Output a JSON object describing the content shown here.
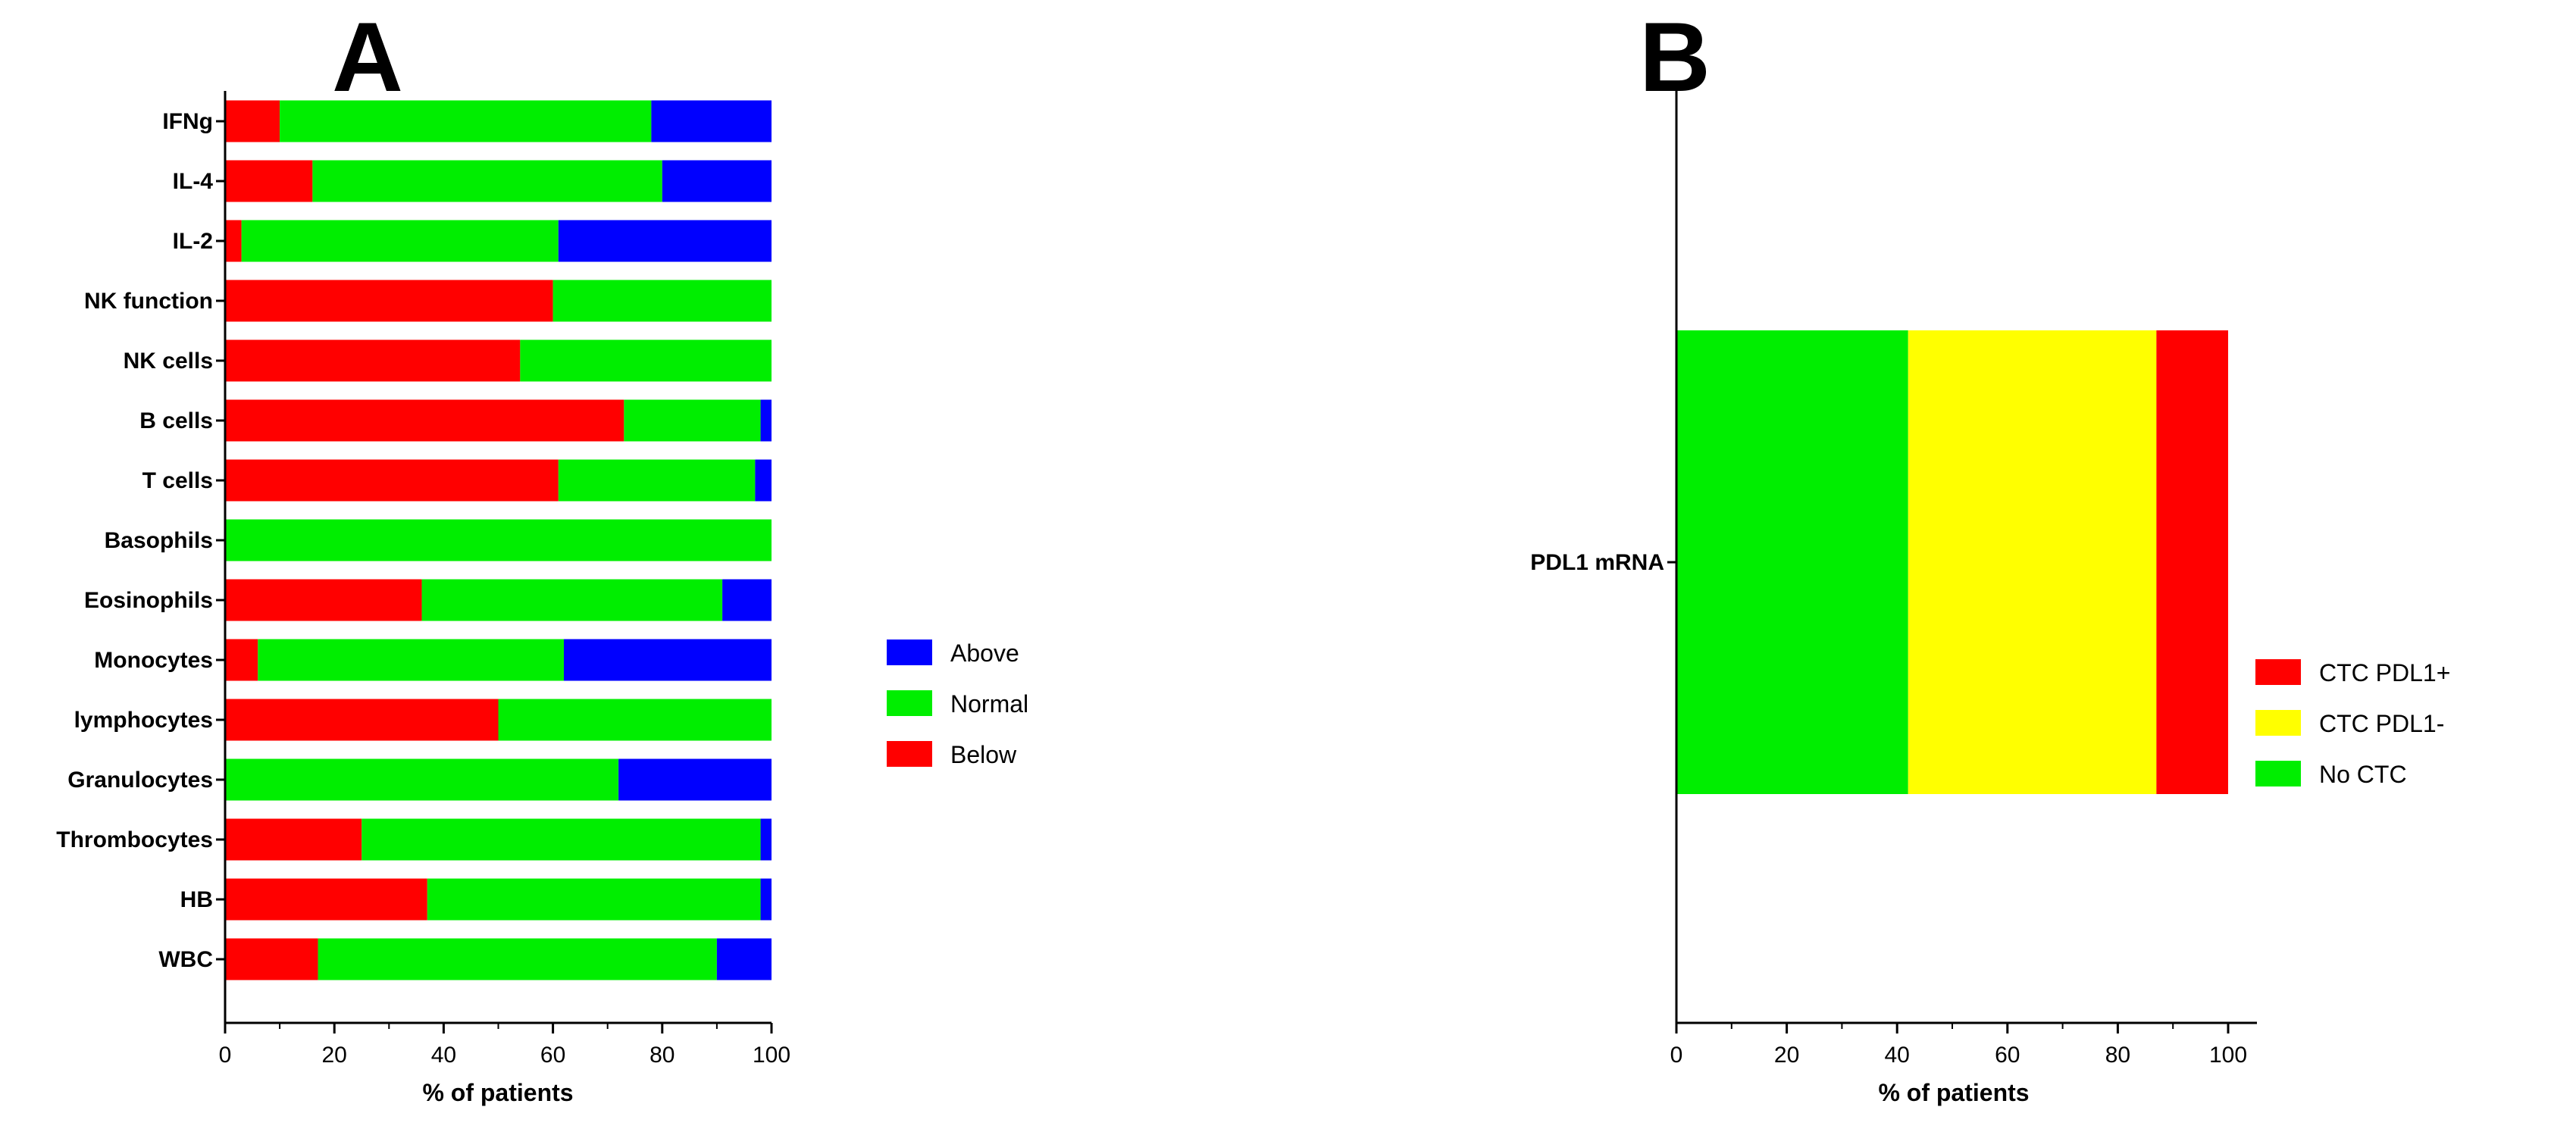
{
  "chart_data": [
    {
      "panel": "A",
      "type": "bar",
      "orientation": "horizontal",
      "stacked": true,
      "categories": [
        "IFNg",
        "IL-4",
        "IL-2",
        "NK function",
        "NK cells",
        "B cells",
        "T cells",
        "Basophils",
        "Eosinophils",
        "Monocytes",
        "lymphocytes",
        "Granulocytes",
        "Thrombocytes",
        "HB",
        "WBC"
      ],
      "series": [
        {
          "name": "Below",
          "color": "#ff0000",
          "values": [
            10,
            16,
            3,
            60,
            54,
            73,
            61,
            0,
            36,
            6,
            50,
            0,
            25,
            37,
            17
          ]
        },
        {
          "name": "Normal",
          "color": "#00ee00",
          "values": [
            68,
            64,
            58,
            40,
            46,
            25,
            36,
            100,
            55,
            56,
            50,
            72,
            73,
            61,
            73
          ]
        },
        {
          "name": "Above",
          "color": "#0000ff",
          "values": [
            22,
            20,
            39,
            0,
            0,
            2,
            3,
            0,
            9,
            38,
            0,
            28,
            2,
            2,
            10
          ]
        }
      ],
      "legend": [
        "Above",
        "Normal",
        "Below"
      ],
      "xlabel": "% of patients",
      "xlim": [
        0,
        100
      ],
      "xticks": [
        "0",
        "20",
        "40",
        "60",
        "80",
        "100"
      ]
    },
    {
      "panel": "B",
      "type": "bar",
      "orientation": "horizontal",
      "stacked": true,
      "categories": [
        "PDL1 mRNA"
      ],
      "series": [
        {
          "name": "No CTC",
          "color": "#00ee00",
          "values": [
            42
          ]
        },
        {
          "name": "CTC PDL1-",
          "color": "#ffff00",
          "values": [
            45
          ]
        },
        {
          "name": "CTC PDL1+",
          "color": "#ff0000",
          "values": [
            13
          ]
        }
      ],
      "legend": [
        "CTC PDL1+",
        "CTC PDL1-",
        "No CTC"
      ],
      "xlabel": "% of patients",
      "xlim": [
        0,
        100
      ],
      "xticks": [
        "0",
        "20",
        "40",
        "60",
        "80",
        "100"
      ]
    }
  ]
}
